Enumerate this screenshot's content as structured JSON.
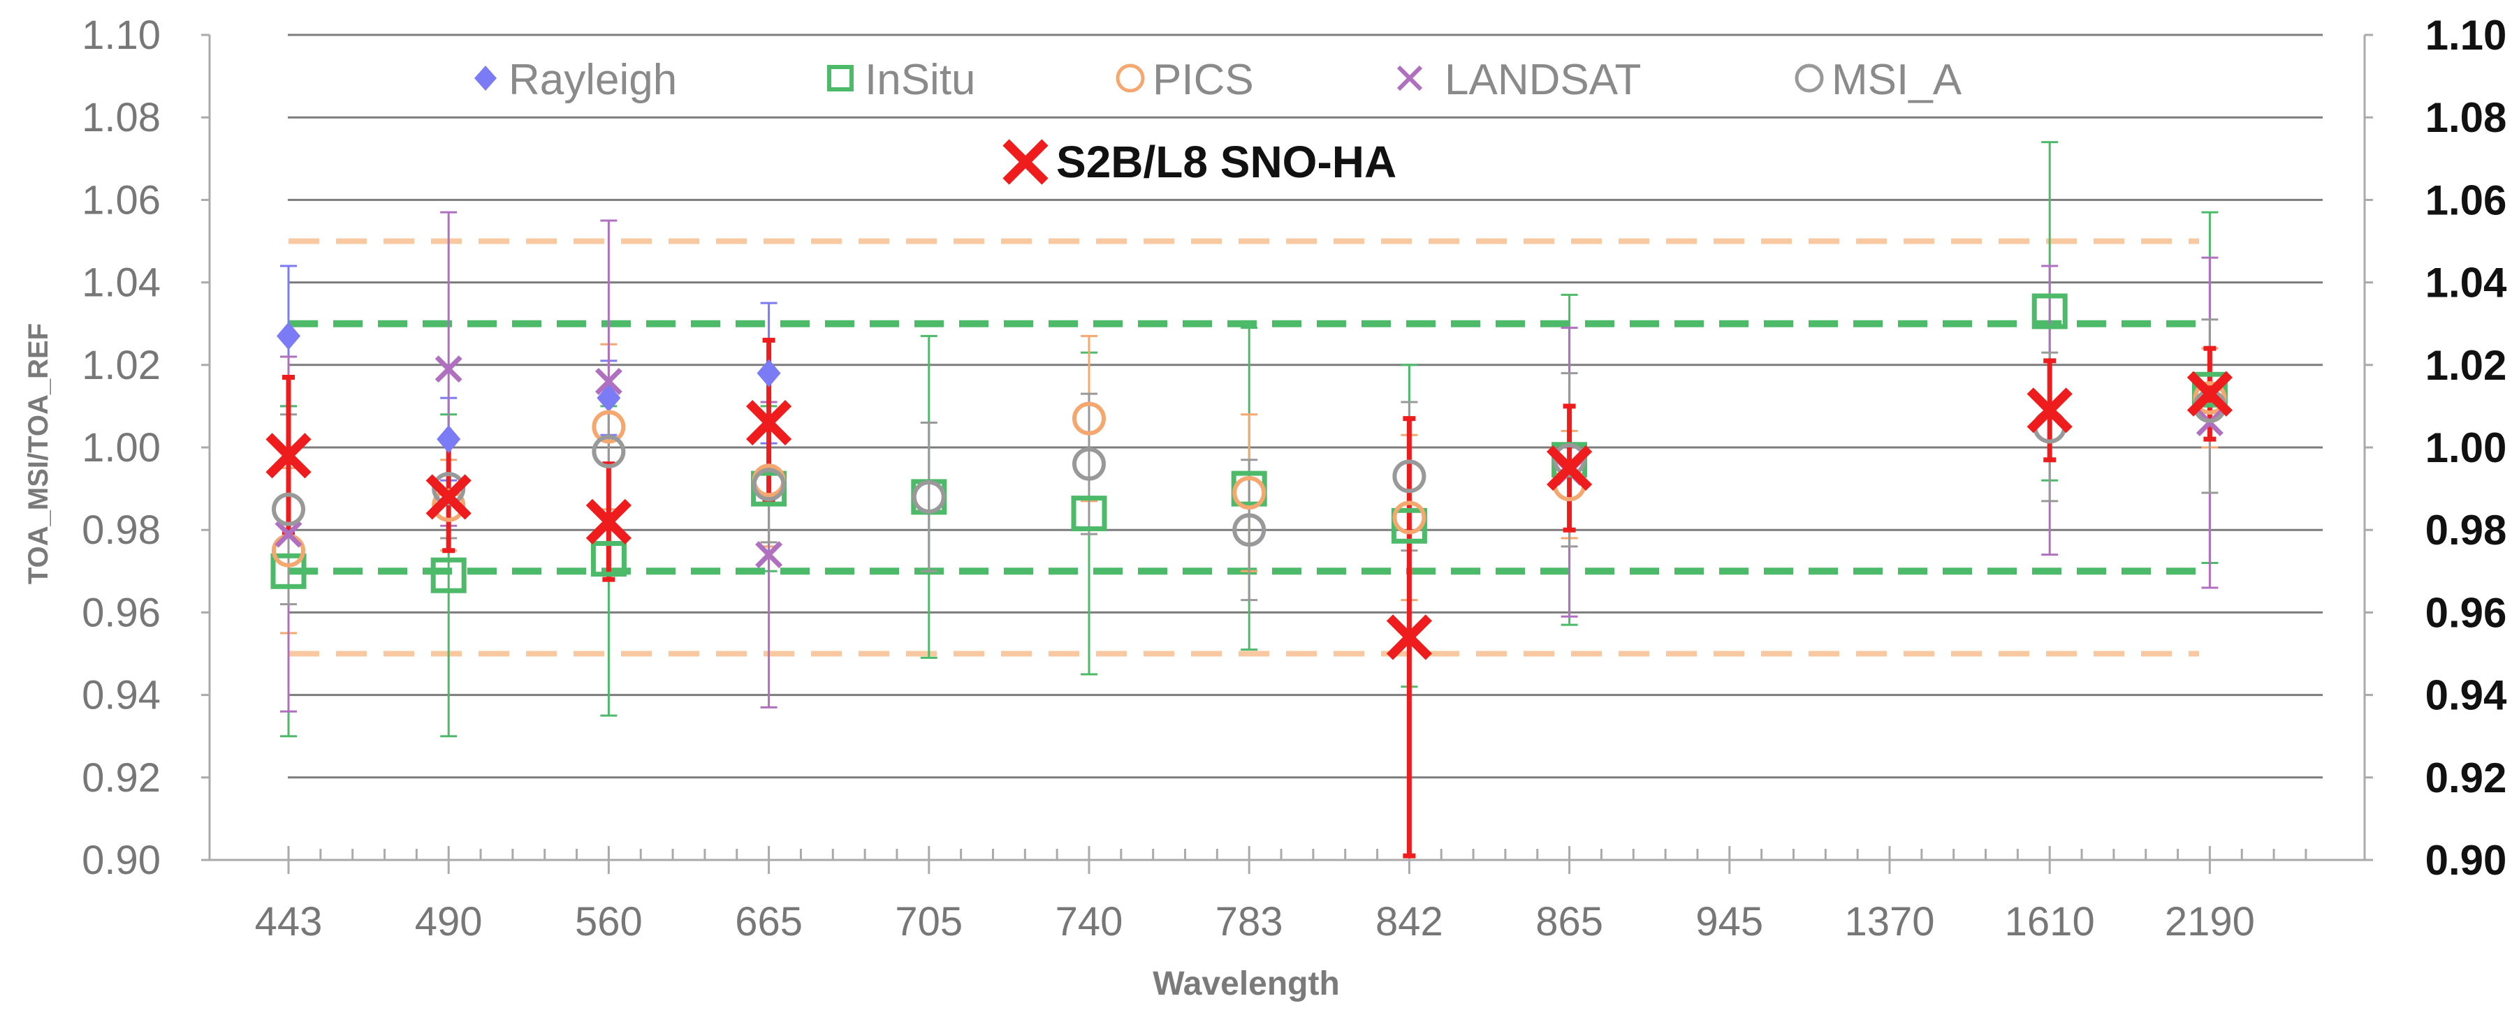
{
  "chart_data": {
    "type": "scatter",
    "xlabel": "Wavelength",
    "ylabel": "TOA_MSI/TOA_REF",
    "categories": [
      "443",
      "490",
      "560",
      "665",
      "705",
      "740",
      "783",
      "842",
      "865",
      "945",
      "1370",
      "1610",
      "2190"
    ],
    "ylim": [
      0.9,
      1.1
    ],
    "yticks_left": [
      "0.90",
      "0.92",
      "0.94",
      "0.96",
      "0.98",
      "1.00",
      "1.02",
      "1.04",
      "1.06",
      "1.08",
      "1.10"
    ],
    "yticks_right": [
      "0.90",
      "0.92",
      "0.94",
      "0.96",
      "0.98",
      "1.00",
      "1.02",
      "1.04",
      "1.06",
      "1.08",
      "1.10"
    ],
    "grid": true,
    "legend_position": "top-center",
    "reference_lines": [
      {
        "y": 1.05,
        "color": "#f8c8a0",
        "style": "dashed"
      },
      {
        "y": 1.03,
        "color": "#4dba6a",
        "style": "dashed"
      },
      {
        "y": 0.97,
        "color": "#4dba6a",
        "style": "dashed"
      },
      {
        "y": 0.95,
        "color": "#f8c8a0",
        "style": "dashed"
      }
    ],
    "series": [
      {
        "name": "Rayleigh",
        "marker": "diamond",
        "color": "#7b7bf5",
        "points": [
          {
            "x": "443",
            "y": 1.027,
            "lo": 1.01,
            "hi": 1.044
          },
          {
            "x": "490",
            "y": 1.002,
            "lo": 0.992,
            "hi": 1.012
          },
          {
            "x": "560",
            "y": 1.012,
            "lo": 1.003,
            "hi": 1.021
          },
          {
            "x": "665",
            "y": 1.018,
            "lo": 1.001,
            "hi": 1.035
          }
        ]
      },
      {
        "name": "InSitu",
        "marker": "square",
        "color": "#4dba6a",
        "points": [
          {
            "x": "443",
            "y": 0.97,
            "lo": 0.93,
            "hi": 1.01
          },
          {
            "x": "490",
            "y": 0.969,
            "lo": 0.93,
            "hi": 1.008
          },
          {
            "x": "560",
            "y": 0.973,
            "lo": 0.935,
            "hi": 1.01
          },
          {
            "x": "665",
            "y": 0.99,
            "lo": 0.97,
            "hi": 1.01
          },
          {
            "x": "705",
            "y": 0.988,
            "lo": 0.949,
            "hi": 1.027
          },
          {
            "x": "740",
            "y": 0.984,
            "lo": 0.945,
            "hi": 1.023
          },
          {
            "x": "783",
            "y": 0.99,
            "lo": 0.951,
            "hi": 1.029
          },
          {
            "x": "842",
            "y": 0.981,
            "lo": 0.942,
            "hi": 1.02
          },
          {
            "x": "865",
            "y": 0.997,
            "lo": 0.957,
            "hi": 1.037
          },
          {
            "x": "1610",
            "y": 1.033,
            "lo": 0.992,
            "hi": 1.074
          },
          {
            "x": "2190",
            "y": 1.014,
            "lo": 0.972,
            "hi": 1.057
          }
        ]
      },
      {
        "name": "PICS",
        "marker": "circle",
        "color": "#f4a870",
        "points": [
          {
            "x": "443",
            "y": 0.975,
            "lo": 0.955,
            "hi": 0.995
          },
          {
            "x": "490",
            "y": 0.986,
            "lo": 0.975,
            "hi": 0.997
          },
          {
            "x": "560",
            "y": 1.005,
            "lo": 0.985,
            "hi": 1.025
          },
          {
            "x": "665",
            "y": 0.992,
            "lo": 0.976,
            "hi": 1.008
          },
          {
            "x": "740",
            "y": 1.007,
            "lo": 0.987,
            "hi": 1.027
          },
          {
            "x": "783",
            "y": 0.989,
            "lo": 0.97,
            "hi": 1.008
          },
          {
            "x": "842",
            "y": 0.983,
            "lo": 0.963,
            "hi": 1.003
          },
          {
            "x": "865",
            "y": 0.991,
            "lo": 0.978,
            "hi": 1.004
          },
          {
            "x": "2190",
            "y": 1.012,
            "lo": 1.0,
            "hi": 1.024
          }
        ]
      },
      {
        "name": "LANDSAT",
        "marker": "x",
        "color": "#b070c0",
        "points": [
          {
            "x": "443",
            "y": 0.979,
            "lo": 0.936,
            "hi": 1.022
          },
          {
            "x": "490",
            "y": 1.019,
            "lo": 0.981,
            "hi": 1.057
          },
          {
            "x": "560",
            "y": 1.016,
            "lo": 0.977,
            "hi": 1.055
          },
          {
            "x": "665",
            "y": 0.974,
            "lo": 0.937,
            "hi": 1.011
          },
          {
            "x": "865",
            "y": 0.994,
            "lo": 0.959,
            "hi": 1.029
          },
          {
            "x": "1610",
            "y": 1.009,
            "lo": 0.974,
            "hi": 1.044
          },
          {
            "x": "2190",
            "y": 1.006,
            "lo": 0.966,
            "hi": 1.046
          }
        ]
      },
      {
        "name": "MSI_A",
        "marker": "circle",
        "color": "#999999",
        "points": [
          {
            "x": "443",
            "y": 0.985,
            "lo": 0.962,
            "hi": 1.008
          },
          {
            "x": "490",
            "y": 0.99,
            "lo": 0.978,
            "hi": 1.002
          },
          {
            "x": "560",
            "y": 0.999,
            "lo": 0.984,
            "hi": 1.014
          },
          {
            "x": "665",
            "y": 0.991,
            "lo": 0.977,
            "hi": 1.005
          },
          {
            "x": "705",
            "y": 0.988,
            "lo": 0.97,
            "hi": 1.006
          },
          {
            "x": "740",
            "y": 0.996,
            "lo": 0.979,
            "hi": 1.013
          },
          {
            "x": "783",
            "y": 0.98,
            "lo": 0.963,
            "hi": 0.997
          },
          {
            "x": "842",
            "y": 0.993,
            "lo": 0.975,
            "hi": 1.011
          },
          {
            "x": "865",
            "y": 0.997,
            "lo": 0.976,
            "hi": 1.018
          },
          {
            "x": "1610",
            "y": 1.005,
            "lo": 0.987,
            "hi": 1.023
          },
          {
            "x": "2190",
            "y": 1.01,
            "lo": 0.989,
            "hi": 1.031
          }
        ]
      },
      {
        "name": "S2B/L8 SNO-HA",
        "marker": "bigx",
        "color": "#ee1c1c",
        "points": [
          {
            "x": "443",
            "y": 0.998,
            "lo": 0.979,
            "hi": 1.017
          },
          {
            "x": "490",
            "y": 0.988,
            "lo": 0.975,
            "hi": 1.001
          },
          {
            "x": "560",
            "y": 0.982,
            "lo": 0.968,
            "hi": 0.996
          },
          {
            "x": "665",
            "y": 1.006,
            "lo": 0.987,
            "hi": 1.026
          },
          {
            "x": "842",
            "y": 0.954,
            "lo": 0.901,
            "hi": 1.007
          },
          {
            "x": "865",
            "y": 0.995,
            "lo": 0.98,
            "hi": 1.01
          },
          {
            "x": "1610",
            "y": 1.009,
            "lo": 0.997,
            "hi": 1.021
          },
          {
            "x": "2190",
            "y": 1.013,
            "lo": 1.002,
            "hi": 1.024
          }
        ]
      }
    ]
  }
}
